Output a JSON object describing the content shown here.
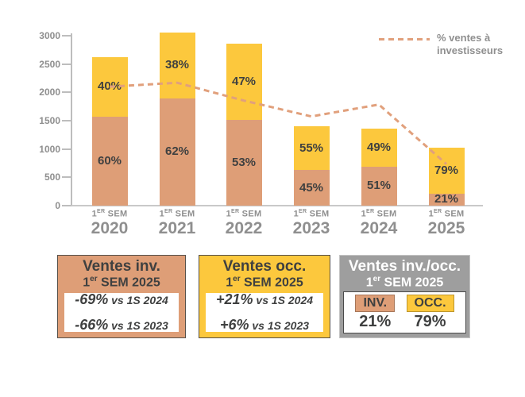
{
  "accent_colors": {
    "investor_orange": "#DE9E77",
    "occupant_yellow": "#FCC83D",
    "trend_line": "#E1A07C",
    "axis_gray": "#BDBDBD",
    "label_gray": "#8F8F8F",
    "text_dark": "#3F4040",
    "box_gray": "#9E9E9E"
  },
  "legend": {
    "lines": [
      "% ventes à",
      "investisseurs"
    ]
  },
  "chart_data": {
    "type": "bar",
    "subtype": "stacked-bars-with-line",
    "title": "",
    "xlabel": "",
    "ylabel": "",
    "ylim": [
      0,
      3000
    ],
    "ytick_step": 500,
    "grid": false,
    "legend_position": "top-right",
    "x_sem": {
      "base": "1",
      "sup": "ER",
      "rest": " SEM"
    },
    "years": [
      "2020",
      "2021",
      "2022",
      "2023",
      "2024",
      "2025"
    ],
    "categories": [
      "1er SEM 2020",
      "1er SEM 2021",
      "1er SEM 2022",
      "1er SEM 2023",
      "1er SEM 2024",
      "1er SEM 2025"
    ],
    "totals": [
      2620,
      3060,
      2860,
      1400,
      1360,
      1030
    ],
    "series": [
      {
        "name": "Ventes investisseurs",
        "pct": [
          60,
          62,
          53,
          45,
          51,
          21
        ],
        "labels": [
          "60%",
          "62%",
          "53%",
          "45%",
          "51%",
          "21%"
        ],
        "color": "#DE9E77"
      },
      {
        "name": "Ventes occupants",
        "pct": [
          40,
          38,
          47,
          55,
          49,
          79
        ],
        "labels": [
          "40%",
          "38%",
          "47%",
          "55%",
          "49%",
          "79%"
        ],
        "color": "#FCC83D"
      }
    ],
    "line": {
      "name": "% ventes à investisseurs",
      "pct": [
        60,
        62,
        53,
        45,
        51,
        21
      ],
      "color": "#E1A07C"
    }
  },
  "boxes": [
    {
      "title": "Ventes inv.",
      "subtitle_base": "1",
      "subtitle_sup": "er",
      "subtitle_rest": " SEM 2025",
      "stats": [
        {
          "value": "-69%",
          "vs": " vs 1S 2024"
        },
        {
          "value": "-66%",
          "vs": " vs 1S 2023"
        }
      ]
    },
    {
      "title": "Ventes occ.",
      "subtitle_base": "1",
      "subtitle_sup": "er",
      "subtitle_rest": " SEM 2025",
      "stats": [
        {
          "value": "+21%",
          "vs": " vs 1S 2024"
        },
        {
          "value": "+6%",
          "vs": " vs 1S 2023"
        }
      ]
    },
    {
      "title": "Ventes inv./occ.",
      "subtitle_base": "1",
      "subtitle_sup": "er",
      "subtitle_rest": " SEM 2025",
      "chips": [
        {
          "label": "INV.",
          "value": "21%"
        },
        {
          "label": "OCC.",
          "value": "79%"
        }
      ]
    }
  ]
}
